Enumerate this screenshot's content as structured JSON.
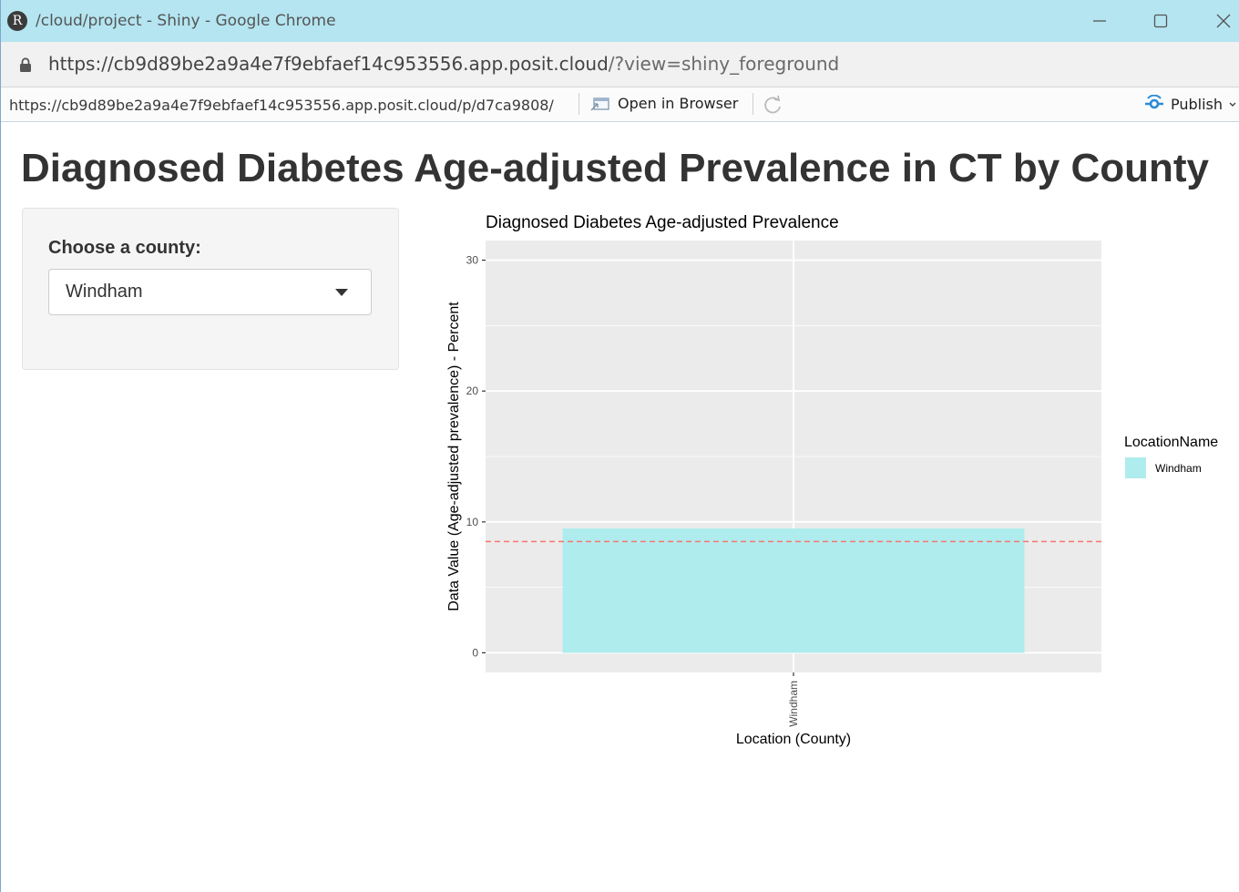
{
  "window": {
    "title": "/cloud/project - Shiny - Google Chrome",
    "logo_letter": "R"
  },
  "address_bar": {
    "url_host": "https://cb9d89be2a9a4e7f9ebfaef14c953556.app.posit.cloud",
    "url_rest": "/?view=shiny_foreground"
  },
  "viewer_toolbar": {
    "url": "https://cb9d89be2a9a4e7f9ebfaef14c953556.app.posit.cloud/p/d7ca9808/",
    "open_in_browser_label": "Open in Browser",
    "publish_label": "Publish"
  },
  "app": {
    "title": "Diagnosed Diabetes Age-adjusted Prevalence in CT by County",
    "sidebar": {
      "county_label": "Choose a county:",
      "county_selected": "Windham"
    }
  },
  "colors": {
    "titlebar": "#b4e5f1",
    "bar_fill": "#afecee",
    "reference_line": "#f8766d",
    "panel_bg": "#ebebeb"
  },
  "chart_data": {
    "type": "bar",
    "title": "Diagnosed Diabetes Age-adjusted Prevalence",
    "xlabel": "Location (County)",
    "ylabel": "Data Value (Age-adjusted prevalence) - Percent",
    "categories": [
      "Windham"
    ],
    "values": [
      9.5
    ],
    "ylim": [
      -1.5,
      31.5
    ],
    "yticks": [
      0,
      10,
      20,
      30
    ],
    "ytick_labels": [
      "0",
      "10",
      "20",
      "30"
    ],
    "reference_line": {
      "y": 8.5,
      "style": "dashed"
    },
    "legend": {
      "title": "LocationName",
      "entries": [
        "Windham"
      ],
      "placement": "right"
    },
    "grid": true
  }
}
